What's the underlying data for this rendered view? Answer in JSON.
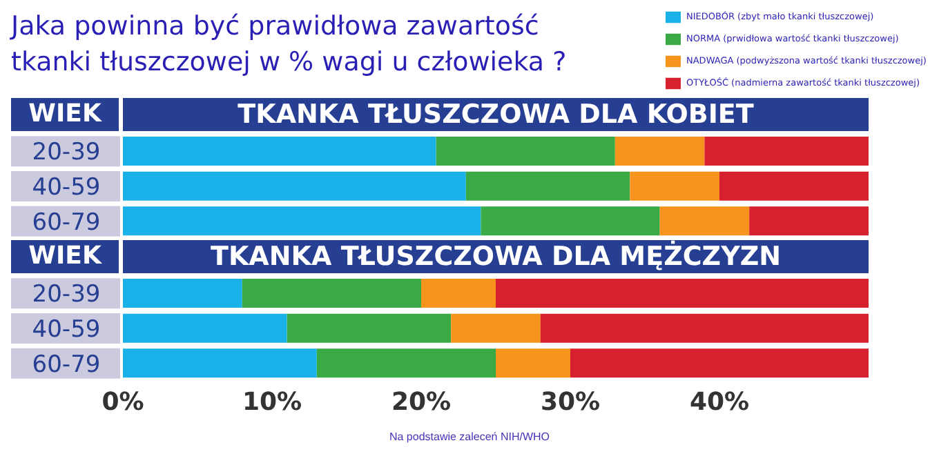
{
  "chart_data": [
    {
      "type": "bar",
      "orientation": "horizontal",
      "stacked": true,
      "title": "Jaka powinna być prawidłowa zawartość tkanki tłuszczowej w % wagi u człowieka ?",
      "subtitle": "TKANKA TŁUSZCZOWA DLA KOBIET",
      "ylabel": "WIEK",
      "categories": [
        "20-39",
        "40-59",
        "60-79"
      ],
      "legend": "top right",
      "tick_labels": "y",
      "xlim": [
        0,
        50
      ],
      "series": [
        {
          "name": "NIEDOBÓR (zbyt mało tkanki tłuszczowej)",
          "color": "#1ab0e8",
          "values": [
            21,
            23,
            24
          ]
        },
        {
          "name": "NORMA (prwidłowa wartość tkanki tłuszczowej)",
          "color": "#3aaa46",
          "values": [
            12,
            11,
            12
          ]
        },
        {
          "name": "NADWAGA (podwyższona wartość tkanki tłuszczowej)",
          "color": "#f7941d",
          "values": [
            6,
            6,
            6
          ]
        },
        {
          "name": "OTYŁOŚĆ (nadmierna zawartość tkanki tłuszczowej)",
          "color": "#d7212e",
          "values": [
            11,
            10,
            8
          ]
        }
      ]
    },
    {
      "type": "bar",
      "orientation": "horizontal",
      "stacked": true,
      "title": "TKANKA TŁUSZCZOWA DLA MĘŻCZYZN",
      "ylabel": "WIEK",
      "categories": [
        "20-39",
        "40-59",
        "60-79"
      ],
      "xlim": [
        0,
        50
      ],
      "xticks": [
        {
          "value": 0,
          "label": "0%"
        },
        {
          "value": 10,
          "label": "10%"
        },
        {
          "value": 20,
          "label": "20%"
        },
        {
          "value": 30,
          "label": "30%"
        },
        {
          "value": 40,
          "label": "40%"
        }
      ],
      "annotations": [
        "Na podstawie zaleceń NIH/WHO"
      ],
      "series": [
        {
          "color": "#1ab0e8",
          "values": [
            8,
            11,
            13
          ]
        },
        {
          "color": "#3aaa46",
          "values": [
            12,
            11,
            12
          ]
        },
        {
          "color": "#f7941d",
          "values": [
            5,
            6,
            5
          ]
        },
        {
          "color": "#d7212e",
          "values": [
            25,
            22,
            20
          ]
        }
      ]
    }
  ]
}
